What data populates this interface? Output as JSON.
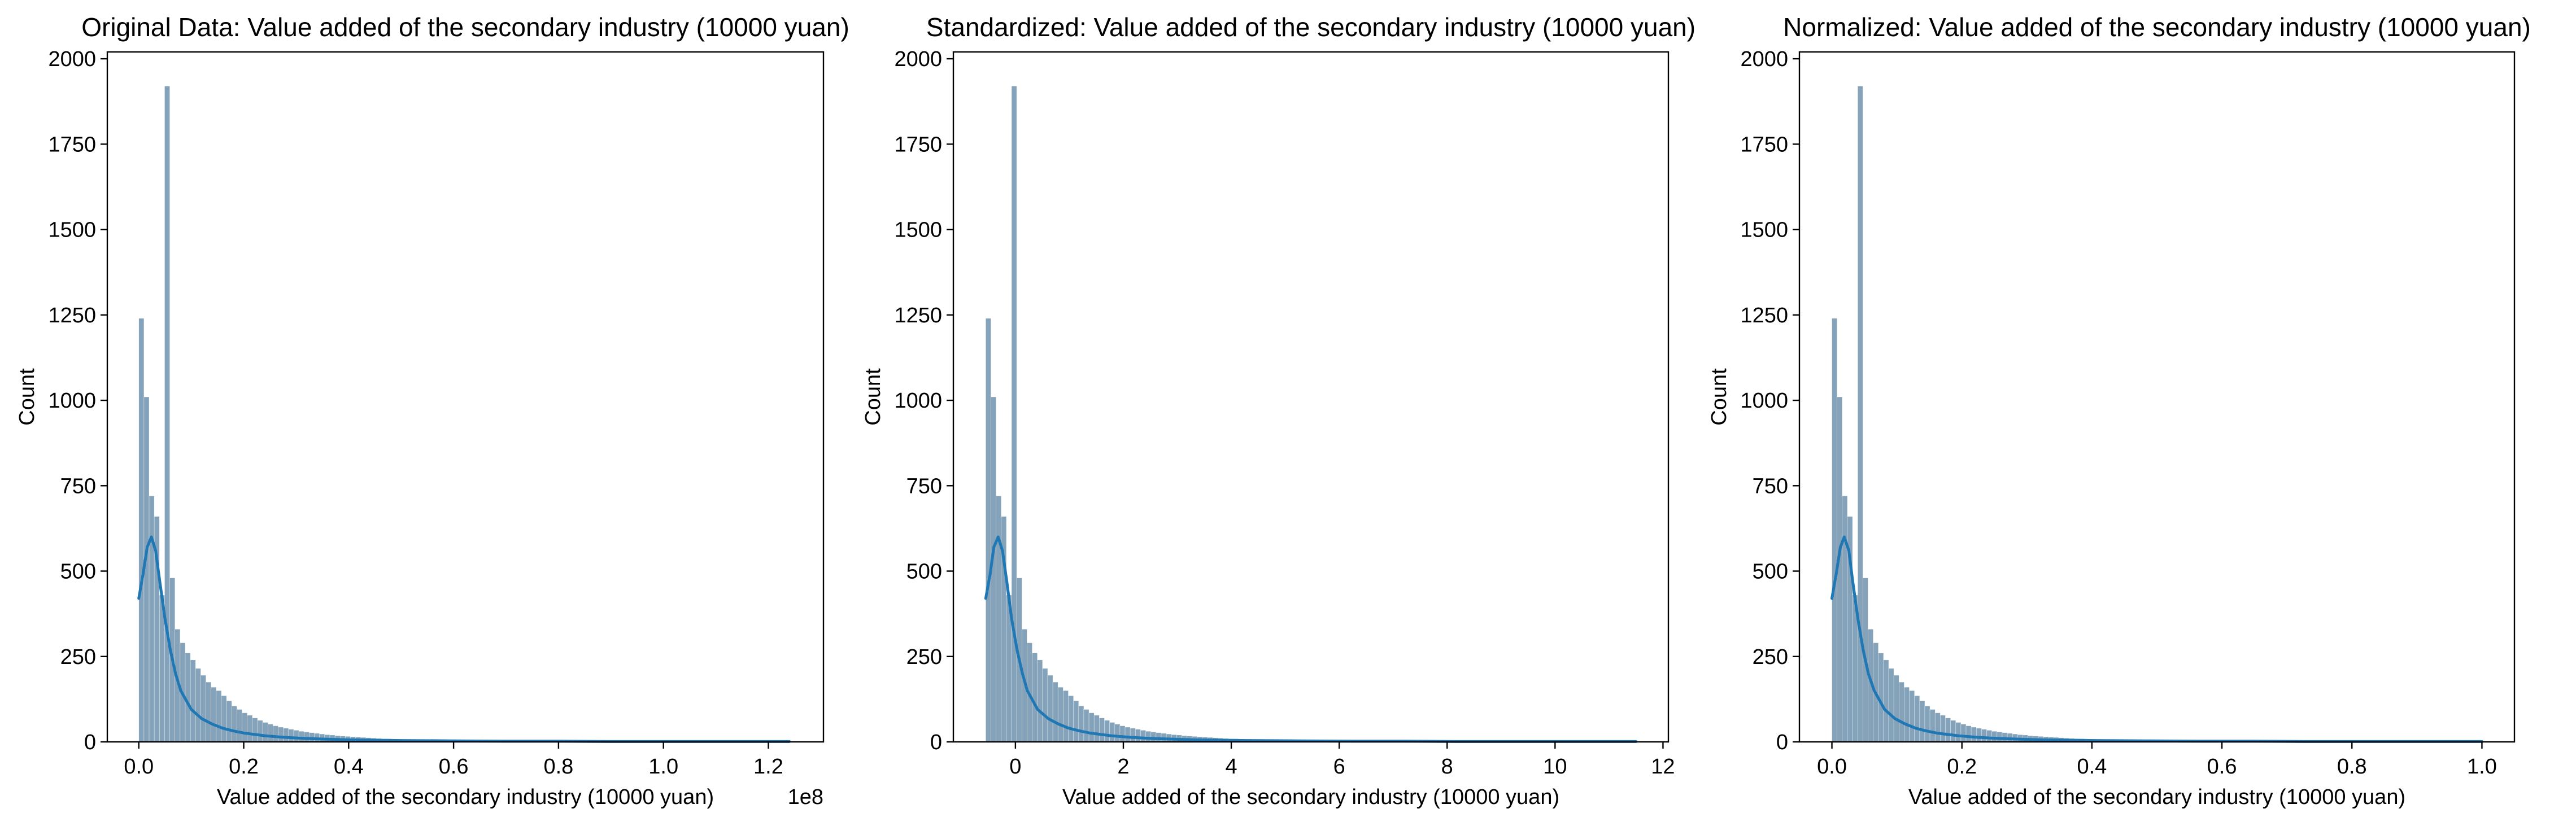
{
  "chart_data": [
    {
      "type": "bar",
      "title": "Original Data: Value added of the secondary industry (10000 yuan)",
      "xlabel": "Value added of the secondary industry (10000 yuan)",
      "ylabel": "Count",
      "x_offset_text": "1e8",
      "xlim": [
        -0.06,
        1.305
      ],
      "ylim": [
        0,
        2020
      ],
      "xticks": [
        0.0,
        0.2,
        0.4,
        0.6,
        0.8,
        1.0,
        1.2
      ],
      "xtick_labels": [
        "0.0",
        "0.2",
        "0.4",
        "0.6",
        "0.8",
        "1.0",
        "1.2"
      ],
      "yticks": [
        0,
        250,
        500,
        750,
        1000,
        1250,
        1500,
        1750,
        2000
      ],
      "ytick_labels": [
        "0",
        "250",
        "500",
        "750",
        "1000",
        "1250",
        "1500",
        "1750",
        "2000"
      ],
      "x_min": 0.0,
      "x_max": 1.24,
      "grid": false,
      "bar_color": "#6e93ae",
      "kde_color": "#1f77b4",
      "hist": [
        1240,
        1010,
        720,
        660,
        430,
        1920,
        480,
        330,
        290,
        260,
        240,
        215,
        195,
        175,
        160,
        150,
        135,
        120,
        105,
        95,
        85,
        78,
        70,
        63,
        57,
        52,
        47,
        43,
        40,
        37,
        34,
        31,
        29,
        27,
        25,
        23,
        21,
        20,
        18,
        17,
        16,
        15,
        14,
        13,
        12,
        11,
        10,
        9,
        9,
        8,
        7,
        7,
        6,
        6,
        5,
        5,
        5,
        4,
        4,
        4,
        3,
        3,
        3,
        3,
        2,
        2,
        2,
        2,
        2,
        2,
        1,
        1,
        1,
        1,
        1,
        1,
        1,
        1,
        1,
        1,
        1,
        1,
        0,
        1,
        0,
        1,
        0,
        1,
        0,
        1,
        0,
        0,
        1,
        0,
        0,
        1,
        0,
        0,
        1,
        0,
        0,
        0,
        1,
        0,
        0,
        0,
        1,
        0,
        0,
        0,
        0,
        1,
        0,
        0,
        0,
        0,
        0,
        1,
        0,
        0,
        0,
        0,
        0,
        0,
        0,
        1
      ],
      "kde": {
        "x": [
          0.0,
          0.008,
          0.016,
          0.024,
          0.032,
          0.04,
          0.05,
          0.06,
          0.07,
          0.08,
          0.1,
          0.12,
          0.14,
          0.16,
          0.18,
          0.2,
          0.24,
          0.28,
          0.32,
          0.36,
          0.4,
          0.5,
          0.6,
          0.7,
          0.8,
          0.9,
          1.0,
          1.1,
          1.24
        ],
        "y": [
          420,
          490,
          570,
          600,
          560,
          470,
          360,
          270,
          200,
          150,
          95,
          68,
          52,
          40,
          32,
          26,
          18,
          13,
          10,
          8,
          6,
          4,
          3,
          2,
          2,
          1,
          1,
          1,
          1
        ]
      }
    },
    {
      "type": "bar",
      "title": "Standardized: Value added of the secondary industry (10000 yuan)",
      "xlabel": "Value added of the secondary industry (10000 yuan)",
      "ylabel": "Count",
      "x_offset_text": "",
      "xlim": [
        -1.15,
        12.1
      ],
      "ylim": [
        0,
        2020
      ],
      "xticks": [
        0,
        2,
        4,
        6,
        8,
        10,
        12
      ],
      "xtick_labels": [
        "0",
        "2",
        "4",
        "6",
        "8",
        "10",
        "12"
      ],
      "yticks": [
        0,
        250,
        500,
        750,
        1000,
        1250,
        1500,
        1750,
        2000
      ],
      "ytick_labels": [
        "0",
        "250",
        "500",
        "750",
        "1000",
        "1250",
        "1500",
        "1750",
        "2000"
      ],
      "x_min": -0.55,
      "x_max": 11.5,
      "grid": false,
      "bar_color": "#6e93ae",
      "kde_color": "#1f77b4",
      "hist": [
        1240,
        1010,
        720,
        660,
        430,
        1920,
        480,
        330,
        290,
        260,
        240,
        215,
        195,
        175,
        160,
        150,
        135,
        120,
        105,
        95,
        85,
        78,
        70,
        63,
        57,
        52,
        47,
        43,
        40,
        37,
        34,
        31,
        29,
        27,
        25,
        23,
        21,
        20,
        18,
        17,
        16,
        15,
        14,
        13,
        12,
        11,
        10,
        9,
        9,
        8,
        7,
        7,
        6,
        6,
        5,
        5,
        5,
        4,
        4,
        4,
        3,
        3,
        3,
        3,
        2,
        2,
        2,
        2,
        2,
        2,
        1,
        1,
        1,
        1,
        1,
        1,
        1,
        1,
        1,
        1,
        1,
        1,
        0,
        1,
        0,
        1,
        0,
        1,
        0,
        1,
        0,
        0,
        1,
        0,
        0,
        1,
        0,
        0,
        1,
        0,
        0,
        0,
        1,
        0,
        0,
        0,
        1,
        0,
        0,
        0,
        0,
        1,
        0,
        0,
        0,
        0,
        0,
        1,
        0,
        0,
        0,
        0,
        0,
        0,
        0,
        1
      ],
      "kde": {
        "x": [
          -0.55,
          -0.47,
          -0.4,
          -0.32,
          -0.24,
          -0.16,
          -0.07,
          0.03,
          0.13,
          0.22,
          0.41,
          0.61,
          0.8,
          0.99,
          1.19,
          1.38,
          1.77,
          2.16,
          2.55,
          2.94,
          3.33,
          4.3,
          5.27,
          6.24,
          7.21,
          8.18,
          9.15,
          10.12,
          11.5
        ],
        "y": [
          420,
          490,
          570,
          600,
          560,
          470,
          360,
          270,
          200,
          150,
          95,
          68,
          52,
          40,
          32,
          26,
          18,
          13,
          10,
          8,
          6,
          4,
          3,
          2,
          2,
          1,
          1,
          1,
          1
        ]
      }
    },
    {
      "type": "bar",
      "title": "Normalized: Value added of the secondary industry (10000 yuan)",
      "xlabel": "Value added of the secondary industry (10000 yuan)",
      "ylabel": "Count",
      "x_offset_text": "",
      "xlim": [
        -0.05,
        1.05
      ],
      "ylim": [
        0,
        2020
      ],
      "xticks": [
        0.0,
        0.2,
        0.4,
        0.6,
        0.8,
        1.0
      ],
      "xtick_labels": [
        "0.0",
        "0.2",
        "0.4",
        "0.6",
        "0.8",
        "1.0"
      ],
      "yticks": [
        0,
        250,
        500,
        750,
        1000,
        1250,
        1500,
        1750,
        2000
      ],
      "ytick_labels": [
        "0",
        "250",
        "500",
        "750",
        "1000",
        "1250",
        "1500",
        "1750",
        "2000"
      ],
      "x_min": 0.0,
      "x_max": 1.0,
      "grid": false,
      "bar_color": "#6e93ae",
      "kde_color": "#1f77b4",
      "hist": [
        1240,
        1010,
        720,
        660,
        430,
        1920,
        480,
        330,
        290,
        260,
        240,
        215,
        195,
        175,
        160,
        150,
        135,
        120,
        105,
        95,
        85,
        78,
        70,
        63,
        57,
        52,
        47,
        43,
        40,
        37,
        34,
        31,
        29,
        27,
        25,
        23,
        21,
        20,
        18,
        17,
        16,
        15,
        14,
        13,
        12,
        11,
        10,
        9,
        9,
        8,
        7,
        7,
        6,
        6,
        5,
        5,
        5,
        4,
        4,
        4,
        3,
        3,
        3,
        3,
        2,
        2,
        2,
        2,
        2,
        2,
        1,
        1,
        1,
        1,
        1,
        1,
        1,
        1,
        1,
        1,
        1,
        1,
        0,
        1,
        0,
        1,
        0,
        1,
        0,
        1,
        0,
        0,
        1,
        0,
        0,
        1,
        0,
        0,
        1,
        0,
        0,
        0,
        1,
        0,
        0,
        0,
        1,
        0,
        0,
        0,
        0,
        1,
        0,
        0,
        0,
        0,
        0,
        1,
        0,
        0,
        0,
        0,
        0,
        0,
        0,
        1
      ],
      "kde": {
        "x": [
          0.0,
          0.0065,
          0.013,
          0.019,
          0.026,
          0.032,
          0.04,
          0.048,
          0.056,
          0.065,
          0.081,
          0.097,
          0.113,
          0.129,
          0.145,
          0.161,
          0.194,
          0.226,
          0.258,
          0.29,
          0.323,
          0.403,
          0.484,
          0.565,
          0.645,
          0.726,
          0.806,
          0.887,
          1.0
        ],
        "y": [
          420,
          490,
          570,
          600,
          560,
          470,
          360,
          270,
          200,
          150,
          95,
          68,
          52,
          40,
          32,
          26,
          18,
          13,
          10,
          8,
          6,
          4,
          3,
          2,
          2,
          1,
          1,
          1,
          1
        ]
      }
    }
  ]
}
